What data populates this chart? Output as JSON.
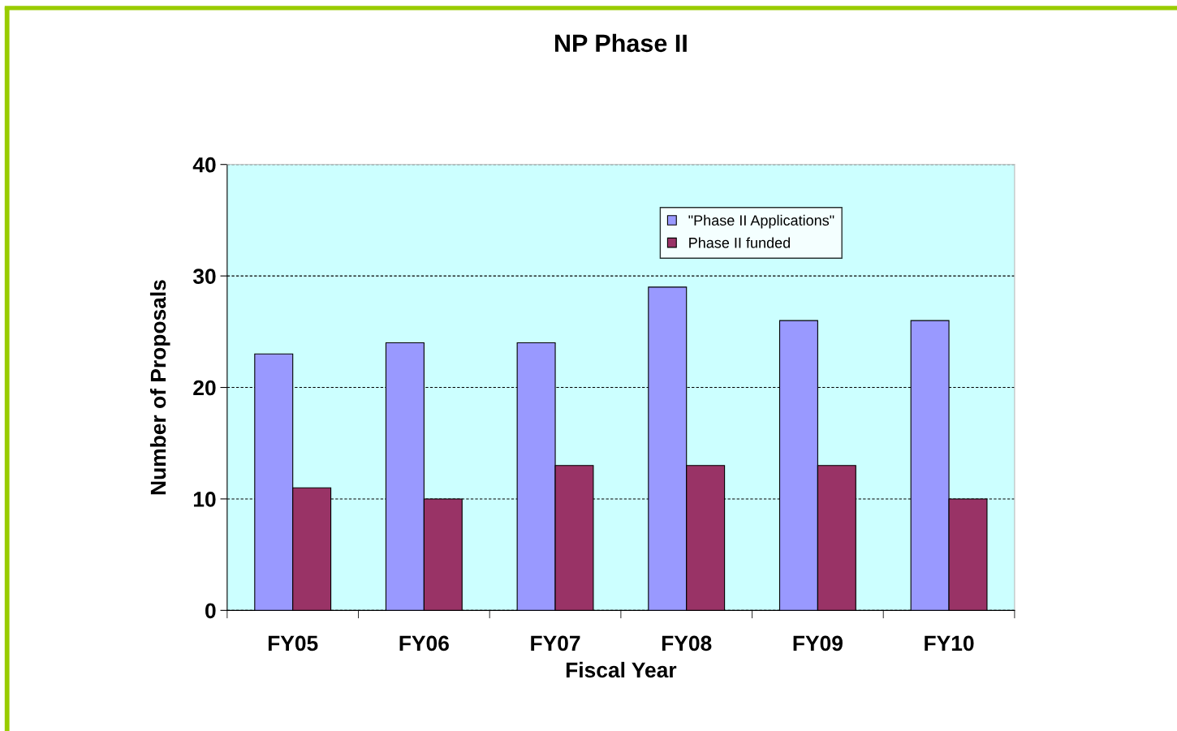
{
  "chart_data": {
    "type": "bar",
    "title": "NP Phase II",
    "xlabel": "Fiscal Year",
    "ylabel": "Number of Proposals",
    "categories": [
      "FY05",
      "FY06",
      "FY07",
      "FY08",
      "FY09",
      "FY10"
    ],
    "series": [
      {
        "name": "\"Phase II Applications\"",
        "color": "#9999ff",
        "values": [
          23,
          24,
          24,
          29,
          26,
          26
        ]
      },
      {
        "name": "Phase II funded",
        "color": "#993366",
        "values": [
          11,
          10,
          13,
          13,
          13,
          10
        ]
      }
    ],
    "ylim": [
      0,
      40
    ],
    "yticks": [
      0,
      10,
      20,
      30,
      40
    ],
    "grid": "y",
    "legend": "top right"
  }
}
